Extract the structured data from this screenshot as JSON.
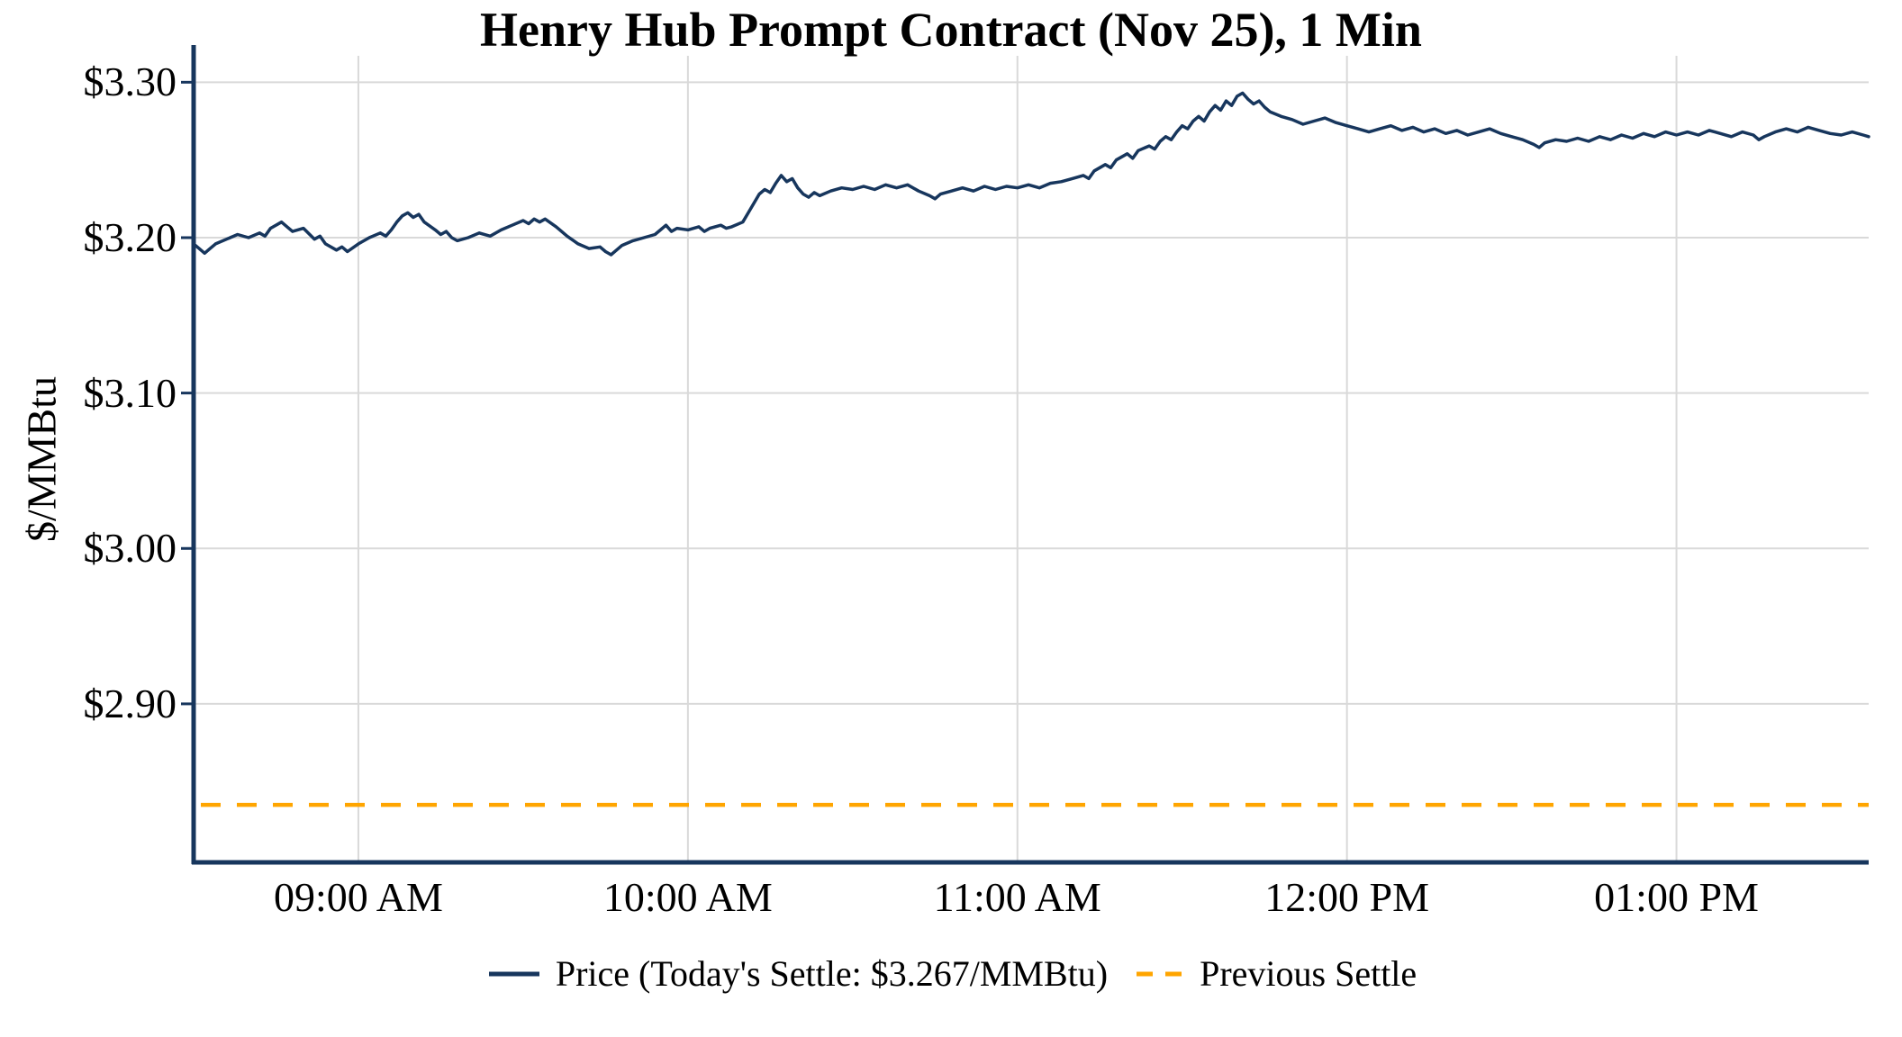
{
  "chart": {
    "title": "Henry Hub Prompt Contract (Nov 25), 1 Min",
    "ylabel": "$/MMBtu"
  },
  "legend": {
    "price_label": "Price (Today's Settle: $3.267/MMBtu)",
    "prev_settle_label": "Previous Settle"
  },
  "colors": {
    "price_line": "#17365d",
    "prev_settle_line": "#FFA500",
    "grid": "#d9d9d9",
    "axis": "#17365d",
    "text": "#000000"
  },
  "chart_data": {
    "type": "line",
    "title": "Henry Hub Prompt Contract (Nov 25), 1 Min",
    "xlabel": "",
    "ylabel": "$/MMBtu",
    "x_unit": "minutes since 08:30 AM",
    "x_range": [
      0,
      305
    ],
    "y_range": [
      2.798,
      3.317
    ],
    "grid": true,
    "legend_position": "bottom-center",
    "todays_settle": 3.267,
    "previous_settle": 2.835,
    "x_ticks": [
      {
        "minute": 30,
        "label": "09:00 AM"
      },
      {
        "minute": 90,
        "label": "10:00 AM"
      },
      {
        "minute": 150,
        "label": "11:00 AM"
      },
      {
        "minute": 210,
        "label": "12:00 PM"
      },
      {
        "minute": 270,
        "label": "01:00 PM"
      }
    ],
    "y_ticks": [
      {
        "value": 3.3,
        "label": "$3.30"
      },
      {
        "value": 3.2,
        "label": "$3.20"
      },
      {
        "value": 3.1,
        "label": "$3.10"
      },
      {
        "value": 3.0,
        "label": "$3.00"
      },
      {
        "value": 2.9,
        "label": "$2.90"
      }
    ],
    "series": [
      {
        "name": "Price (Today's Settle: $3.267/MMBtu)",
        "style": "solid",
        "color": "#17365d",
        "points": [
          [
            0,
            3.196
          ],
          [
            1,
            3.193
          ],
          [
            2,
            3.19
          ],
          [
            3,
            3.193
          ],
          [
            4,
            3.196
          ],
          [
            6,
            3.199
          ],
          [
            8,
            3.202
          ],
          [
            10,
            3.2
          ],
          [
            12,
            3.203
          ],
          [
            13,
            3.201
          ],
          [
            14,
            3.206
          ],
          [
            16,
            3.21
          ],
          [
            17,
            3.207
          ],
          [
            18,
            3.204
          ],
          [
            20,
            3.206
          ],
          [
            22,
            3.199
          ],
          [
            23,
            3.201
          ],
          [
            24,
            3.196
          ],
          [
            26,
            3.192
          ],
          [
            27,
            3.194
          ],
          [
            28,
            3.191
          ],
          [
            30,
            3.196
          ],
          [
            32,
            3.2
          ],
          [
            34,
            3.203
          ],
          [
            35,
            3.201
          ],
          [
            36,
            3.205
          ],
          [
            37,
            3.21
          ],
          [
            38,
            3.214
          ],
          [
            39,
            3.216
          ],
          [
            40,
            3.213
          ],
          [
            41,
            3.215
          ],
          [
            42,
            3.21
          ],
          [
            44,
            3.205
          ],
          [
            45,
            3.202
          ],
          [
            46,
            3.204
          ],
          [
            47,
            3.2
          ],
          [
            48,
            3.198
          ],
          [
            50,
            3.2
          ],
          [
            52,
            3.203
          ],
          [
            54,
            3.201
          ],
          [
            56,
            3.205
          ],
          [
            58,
            3.208
          ],
          [
            60,
            3.211
          ],
          [
            61,
            3.209
          ],
          [
            62,
            3.212
          ],
          [
            63,
            3.21
          ],
          [
            64,
            3.212
          ],
          [
            66,
            3.207
          ],
          [
            68,
            3.201
          ],
          [
            70,
            3.196
          ],
          [
            72,
            3.193
          ],
          [
            74,
            3.194
          ],
          [
            75,
            3.191
          ],
          [
            76,
            3.189
          ],
          [
            77,
            3.192
          ],
          [
            78,
            3.195
          ],
          [
            80,
            3.198
          ],
          [
            82,
            3.2
          ],
          [
            84,
            3.202
          ],
          [
            85,
            3.205
          ],
          [
            86,
            3.208
          ],
          [
            87,
            3.204
          ],
          [
            88,
            3.206
          ],
          [
            90,
            3.205
          ],
          [
            92,
            3.207
          ],
          [
            93,
            3.204
          ],
          [
            94,
            3.206
          ],
          [
            96,
            3.208
          ],
          [
            97,
            3.206
          ],
          [
            98,
            3.207
          ],
          [
            100,
            3.21
          ],
          [
            101,
            3.216
          ],
          [
            102,
            3.222
          ],
          [
            103,
            3.228
          ],
          [
            104,
            3.231
          ],
          [
            105,
            3.229
          ],
          [
            106,
            3.235
          ],
          [
            107,
            3.24
          ],
          [
            108,
            3.236
          ],
          [
            109,
            3.238
          ],
          [
            110,
            3.232
          ],
          [
            111,
            3.228
          ],
          [
            112,
            3.226
          ],
          [
            113,
            3.229
          ],
          [
            114,
            3.227
          ],
          [
            116,
            3.23
          ],
          [
            118,
            3.232
          ],
          [
            120,
            3.231
          ],
          [
            122,
            3.233
          ],
          [
            124,
            3.231
          ],
          [
            126,
            3.234
          ],
          [
            128,
            3.232
          ],
          [
            130,
            3.234
          ],
          [
            132,
            3.23
          ],
          [
            134,
            3.227
          ],
          [
            135,
            3.225
          ],
          [
            136,
            3.228
          ],
          [
            138,
            3.23
          ],
          [
            140,
            3.232
          ],
          [
            142,
            3.23
          ],
          [
            144,
            3.233
          ],
          [
            146,
            3.231
          ],
          [
            148,
            3.233
          ],
          [
            150,
            3.232
          ],
          [
            152,
            3.234
          ],
          [
            154,
            3.232
          ],
          [
            156,
            3.235
          ],
          [
            158,
            3.236
          ],
          [
            160,
            3.238
          ],
          [
            162,
            3.24
          ],
          [
            163,
            3.238
          ],
          [
            164,
            3.243
          ],
          [
            166,
            3.247
          ],
          [
            167,
            3.245
          ],
          [
            168,
            3.25
          ],
          [
            170,
            3.254
          ],
          [
            171,
            3.251
          ],
          [
            172,
            3.256
          ],
          [
            174,
            3.259
          ],
          [
            175,
            3.257
          ],
          [
            176,
            3.262
          ],
          [
            177,
            3.265
          ],
          [
            178,
            3.263
          ],
          [
            179,
            3.268
          ],
          [
            180,
            3.272
          ],
          [
            181,
            3.27
          ],
          [
            182,
            3.275
          ],
          [
            183,
            3.278
          ],
          [
            184,
            3.275
          ],
          [
            185,
            3.281
          ],
          [
            186,
            3.285
          ],
          [
            187,
            3.282
          ],
          [
            188,
            3.288
          ],
          [
            189,
            3.285
          ],
          [
            190,
            3.291
          ],
          [
            191,
            3.293
          ],
          [
            192,
            3.289
          ],
          [
            193,
            3.286
          ],
          [
            194,
            3.288
          ],
          [
            195,
            3.284
          ],
          [
            196,
            3.281
          ],
          [
            198,
            3.278
          ],
          [
            200,
            3.276
          ],
          [
            202,
            3.273
          ],
          [
            204,
            3.275
          ],
          [
            206,
            3.277
          ],
          [
            208,
            3.274
          ],
          [
            210,
            3.272
          ],
          [
            212,
            3.27
          ],
          [
            214,
            3.268
          ],
          [
            216,
            3.27
          ],
          [
            218,
            3.272
          ],
          [
            220,
            3.269
          ],
          [
            222,
            3.271
          ],
          [
            224,
            3.268
          ],
          [
            226,
            3.27
          ],
          [
            228,
            3.267
          ],
          [
            230,
            3.269
          ],
          [
            232,
            3.266
          ],
          [
            234,
            3.268
          ],
          [
            236,
            3.27
          ],
          [
            238,
            3.267
          ],
          [
            240,
            3.265
          ],
          [
            242,
            3.263
          ],
          [
            244,
            3.26
          ],
          [
            245,
            3.258
          ],
          [
            246,
            3.261
          ],
          [
            248,
            3.263
          ],
          [
            250,
            3.262
          ],
          [
            252,
            3.264
          ],
          [
            254,
            3.262
          ],
          [
            256,
            3.265
          ],
          [
            258,
            3.263
          ],
          [
            260,
            3.266
          ],
          [
            262,
            3.264
          ],
          [
            264,
            3.267
          ],
          [
            266,
            3.265
          ],
          [
            268,
            3.268
          ],
          [
            270,
            3.266
          ],
          [
            272,
            3.268
          ],
          [
            274,
            3.266
          ],
          [
            276,
            3.269
          ],
          [
            278,
            3.267
          ],
          [
            280,
            3.265
          ],
          [
            282,
            3.268
          ],
          [
            284,
            3.266
          ],
          [
            285,
            3.263
          ],
          [
            286,
            3.265
          ],
          [
            288,
            3.268
          ],
          [
            290,
            3.27
          ],
          [
            292,
            3.268
          ],
          [
            294,
            3.271
          ],
          [
            296,
            3.269
          ],
          [
            298,
            3.267
          ],
          [
            300,
            3.266
          ],
          [
            302,
            3.268
          ],
          [
            304,
            3.266
          ],
          [
            305,
            3.265
          ]
        ]
      },
      {
        "name": "Previous Settle",
        "style": "dashed-horizontal",
        "color": "#FFA500",
        "value": 2.835
      }
    ]
  }
}
